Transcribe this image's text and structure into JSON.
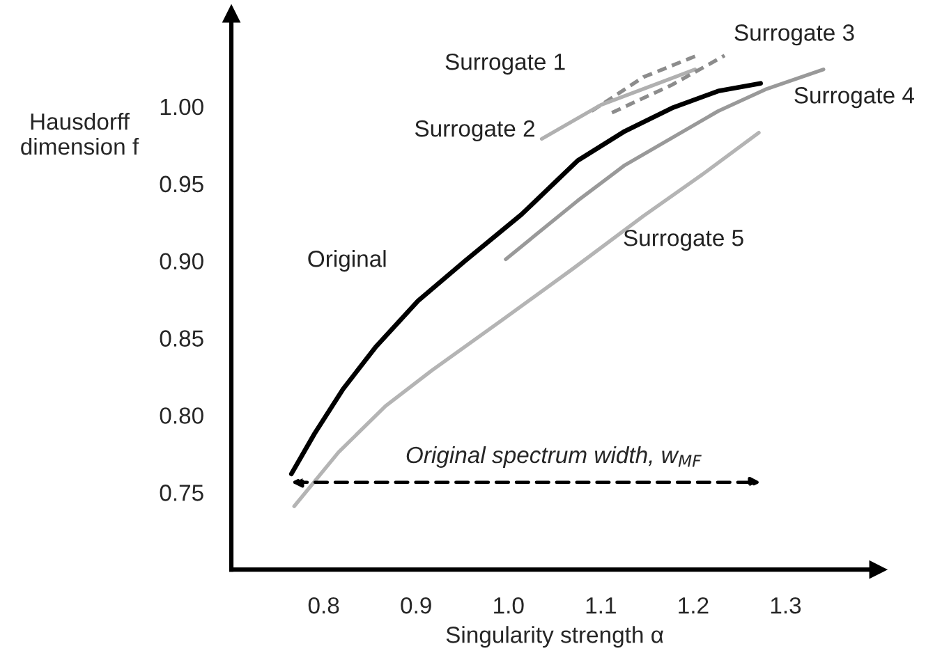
{
  "chart_data": {
    "type": "line",
    "xlabel": "Singularity strength α",
    "ylabel": "Hausdorff\ndimension f",
    "xlim": [
      0.7,
      1.4
    ],
    "xticks": [
      0.8,
      0.9,
      {
        "value": 1.0,
        "label": "1.0"
      },
      1.1,
      1.2,
      1.3
    ],
    "ylim": [
      0.7,
      1.06
    ],
    "yticks": [
      0.75,
      {
        "value": 0.8,
        "label": "0.80"
      },
      0.85,
      {
        "value": 0.9,
        "label": "0.90"
      },
      0.95,
      {
        "value": 1.0,
        "label": "1.00"
      }
    ],
    "grid": false,
    "marker": "none",
    "series": [
      {
        "name": "Original",
        "color": "#000000",
        "line_style": "solid",
        "x": [
          0.765,
          0.79,
          0.821,
          0.856,
          0.902,
          0.953,
          1.014,
          1.075,
          1.126,
          1.177,
          1.227,
          1.273
        ],
        "values": [
          0.762,
          0.788,
          0.817,
          0.844,
          0.874,
          0.9,
          0.93,
          0.965,
          0.984,
          0.999,
          1.01,
          1.015
        ]
      },
      {
        "name": "Surrogate 1",
        "color": "#8c8c8c",
        "line_style": "dashed",
        "x": [
          1.09,
          1.146,
          1.204
        ],
        "values": [
          0.997,
          1.019,
          1.033
        ]
      },
      {
        "name": "Surrogate 2",
        "color": "#b0b0b0",
        "line_style": "solid",
        "x": [
          1.036,
          1.1,
          1.202
        ],
        "values": [
          0.979,
          1.001,
          1.024
        ]
      },
      {
        "name": "Surrogate 3",
        "color": "#8c8c8c",
        "line_style": "dashed",
        "x": [
          1.112,
          1.177,
          1.234
        ],
        "values": [
          0.996,
          1.014,
          1.033
        ]
      },
      {
        "name": "Surrogate 4",
        "color": "#999999",
        "line_style": "solid",
        "x": [
          0.997,
          1.075,
          1.126,
          1.227,
          1.278,
          1.341
        ],
        "values": [
          0.901,
          0.939,
          0.962,
          0.997,
          1.011,
          1.024
        ]
      },
      {
        "name": "Surrogate 5",
        "color": "#b4b4b4",
        "line_style": "solid",
        "x": [
          0.768,
          0.816,
          0.867,
          0.917,
          0.994,
          1.07,
          1.146,
          1.21,
          1.271
        ],
        "values": [
          0.741,
          0.776,
          0.806,
          0.829,
          0.862,
          0.895,
          0.929,
          0.956,
          0.983
        ]
      }
    ],
    "annotations": [
      "Original spectrum width, w$_{MF}$"
    ]
  }
}
